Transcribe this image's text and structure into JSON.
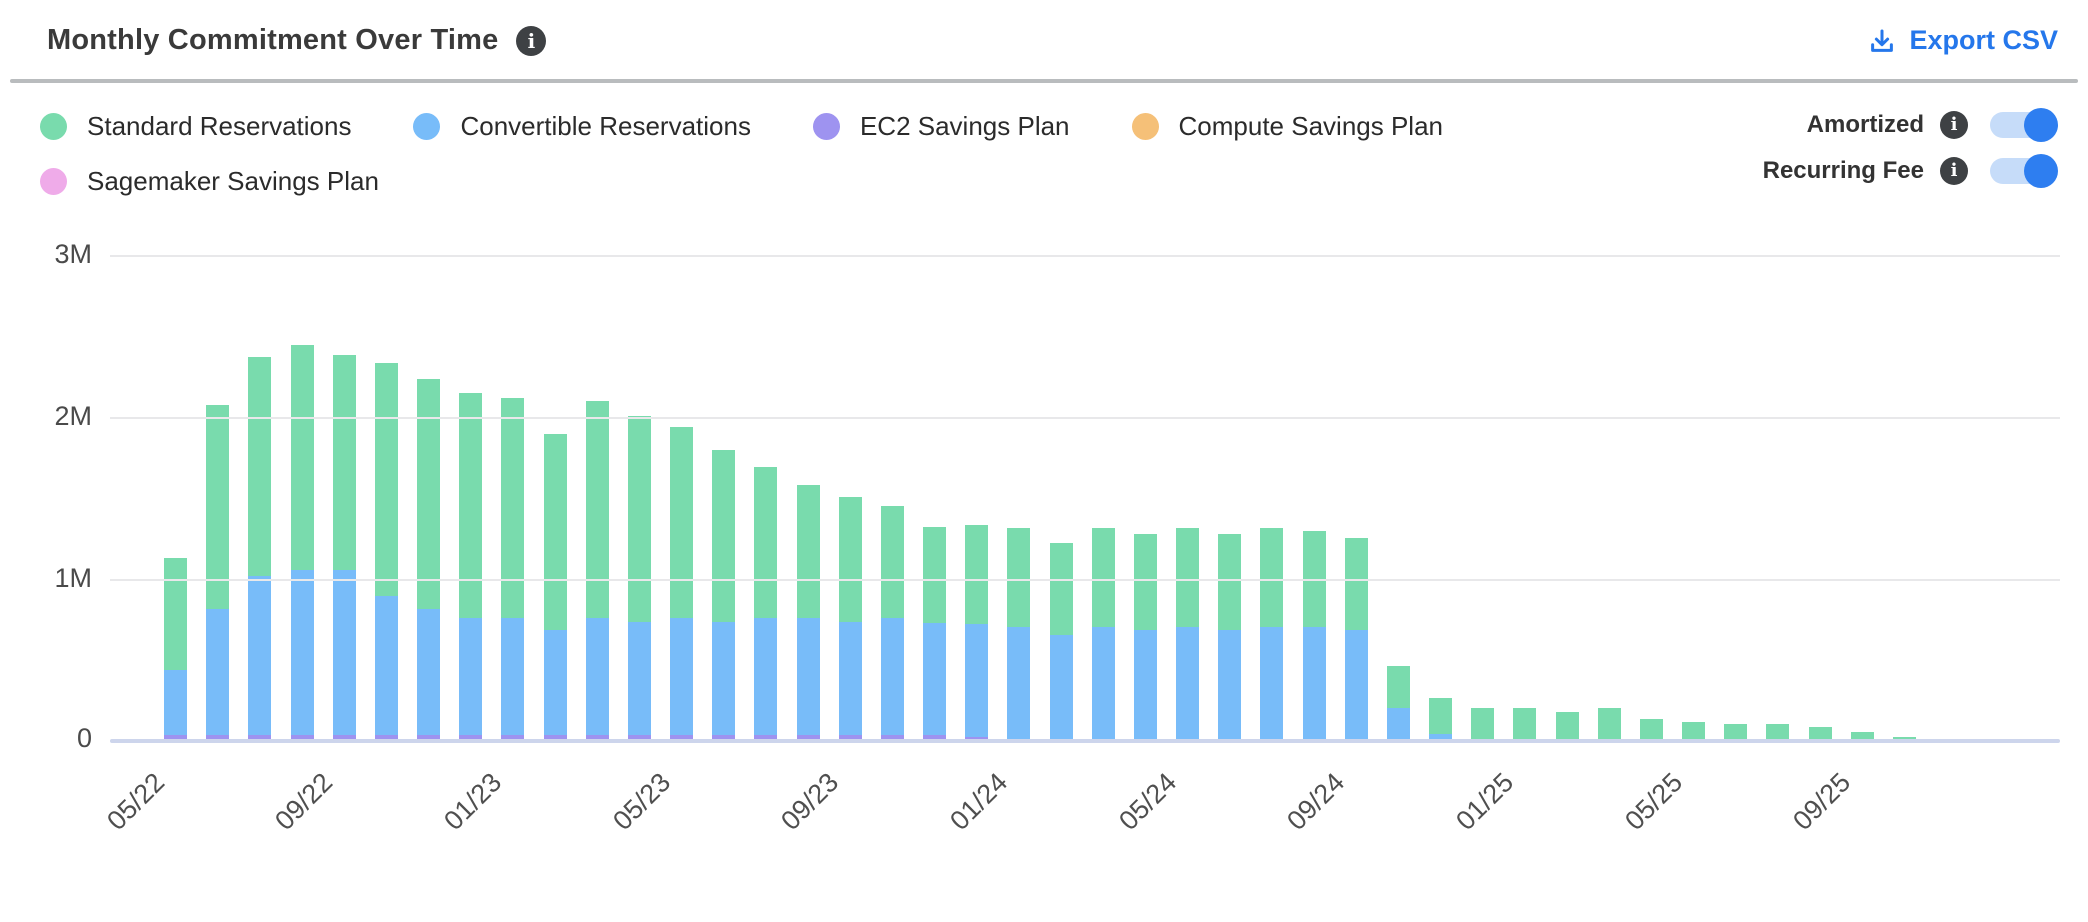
{
  "header": {
    "title": "Monthly Commitment Over Time",
    "export_label": "Export CSV",
    "export_color": "#2577eb"
  },
  "toggles": [
    {
      "label": "Amortized",
      "state": "on"
    },
    {
      "label": "Recurring Fee",
      "state": "on"
    }
  ],
  "colors": {
    "toggle_on": "#2e7ef0",
    "toggle_track": "#c6dcf9",
    "info_icon_bg": "#3e4144",
    "gridline": "#e8e8ea",
    "baseline": "#cdd5ec",
    "title_text": "#3a3a3a",
    "axis_text": "#4f4f4f"
  },
  "chart_data": {
    "type": "bar",
    "stacked": true,
    "value_unit": "millions",
    "ylim": [
      0,
      3
    ],
    "yticks": [
      "3M",
      "2M",
      "1M",
      "0"
    ],
    "grid": "horizontal",
    "legend_position": "top-left",
    "x_tick_every": 4,
    "xtick_labels": [
      "05/22",
      "09/22",
      "01/23",
      "05/23",
      "09/23",
      "01/24",
      "05/24",
      "09/24",
      "01/25",
      "05/25",
      "09/25"
    ],
    "categories": [
      "05/22",
      "06/22",
      "07/22",
      "08/22",
      "09/22",
      "10/22",
      "11/22",
      "12/22",
      "01/23",
      "02/23",
      "03/23",
      "04/23",
      "05/23",
      "06/23",
      "07/23",
      "08/23",
      "09/23",
      "10/23",
      "11/23",
      "12/23",
      "01/24",
      "02/24",
      "03/24",
      "04/24",
      "05/24",
      "06/24",
      "07/24",
      "08/24",
      "09/24",
      "10/24",
      "11/24",
      "12/24",
      "01/25",
      "02/25",
      "03/25",
      "04/25",
      "05/25",
      "06/25",
      "07/25",
      "08/25",
      "09/25",
      "10/25"
    ],
    "stack_order_bottom_to_top": [
      "EC2 Savings Plan",
      "Convertible Reservations",
      "Standard Reservations",
      "Compute Savings Plan",
      "Sagemaker Savings Plan"
    ],
    "series": [
      {
        "name": "Standard Reservations",
        "color": "#79dbad",
        "values": [
          0.69,
          1.26,
          1.35,
          1.39,
          1.33,
          1.44,
          1.42,
          1.39,
          1.36,
          1.21,
          1.34,
          1.27,
          1.18,
          1.06,
          0.93,
          0.82,
          0.77,
          0.69,
          0.59,
          0.61,
          0.61,
          0.57,
          0.61,
          0.59,
          0.61,
          0.59,
          0.61,
          0.59,
          0.57,
          0.26,
          0.22,
          0.2,
          0.2,
          0.17,
          0.2,
          0.13,
          0.11,
          0.1,
          0.1,
          0.08,
          0.05,
          0.02
        ]
      },
      {
        "name": "Convertible Reservations",
        "color": "#78bcf9",
        "values": [
          0.4,
          0.78,
          0.98,
          1.02,
          1.02,
          0.86,
          0.78,
          0.72,
          0.72,
          0.65,
          0.72,
          0.7,
          0.72,
          0.7,
          0.72,
          0.72,
          0.7,
          0.72,
          0.69,
          0.7,
          0.7,
          0.65,
          0.7,
          0.68,
          0.7,
          0.68,
          0.7,
          0.7,
          0.68,
          0.2,
          0.04,
          0,
          0,
          0,
          0,
          0,
          0,
          0,
          0,
          0,
          0,
          0
        ]
      },
      {
        "name": "EC2 Savings Plan",
        "color": "#9e93f0",
        "values": [
          0.03,
          0.03,
          0.03,
          0.03,
          0.03,
          0.03,
          0.03,
          0.03,
          0.03,
          0.03,
          0.03,
          0.03,
          0.03,
          0.03,
          0.03,
          0.03,
          0.03,
          0.03,
          0.03,
          0.02,
          0,
          0,
          0,
          0,
          0,
          0,
          0,
          0,
          0,
          0,
          0,
          0,
          0,
          0,
          0,
          0,
          0,
          0,
          0,
          0,
          0,
          0
        ]
      },
      {
        "name": "Compute Savings Plan",
        "color": "#f5c078",
        "values": [
          0,
          0,
          0,
          0,
          0,
          0,
          0,
          0,
          0,
          0,
          0,
          0,
          0,
          0,
          0,
          0,
          0,
          0,
          0,
          0,
          0,
          0,
          0,
          0,
          0,
          0,
          0,
          0,
          0,
          0,
          0,
          0,
          0,
          0,
          0,
          0,
          0,
          0,
          0,
          0,
          0,
          0
        ]
      },
      {
        "name": "Sagemaker Savings Plan",
        "color": "#efabe9",
        "values": [
          0,
          0,
          0,
          0,
          0,
          0,
          0,
          0,
          0,
          0,
          0,
          0,
          0,
          0,
          0,
          0,
          0,
          0,
          0,
          0,
          0,
          0,
          0,
          0,
          0,
          0,
          0,
          0,
          0,
          0,
          0,
          0,
          0,
          0,
          0,
          0,
          0,
          0,
          0,
          0,
          0,
          0
        ]
      }
    ]
  }
}
